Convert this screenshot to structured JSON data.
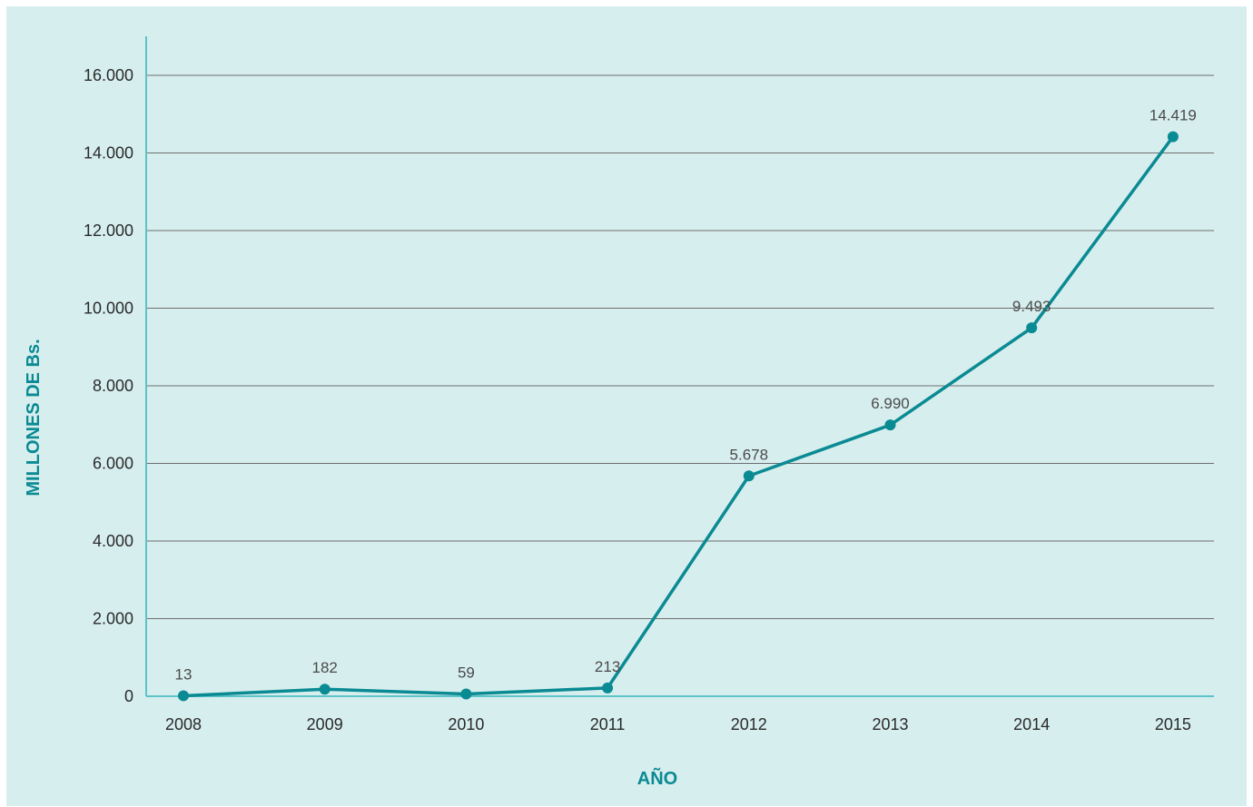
{
  "chart_data": {
    "type": "line",
    "title": "",
    "xlabel": "AÑO",
    "ylabel": "MILLONES DE Bs.",
    "categories": [
      "2008",
      "2009",
      "2010",
      "2011",
      "2012",
      "2013",
      "2014",
      "2015"
    ],
    "series": [
      {
        "values": [
          13,
          182,
          59,
          213,
          5678,
          6990,
          9493,
          14419
        ],
        "labels": [
          "13",
          "182",
          "59",
          "213",
          "5.678",
          "6.990",
          "9.493",
          "14.419"
        ]
      }
    ],
    "ylim": [
      0,
      16000
    ],
    "yticks": [
      0,
      2000,
      4000,
      6000,
      8000,
      10000,
      12000,
      14000,
      16000
    ],
    "ytick_labels": [
      "0",
      "2.000",
      "4.000",
      "6.000",
      "8.000",
      "10.000",
      "12.000",
      "14.000",
      "16.000"
    ],
    "grid": true,
    "legend": "none",
    "colors": {
      "line": "#0a8a93",
      "axis": "#5cc3c8",
      "axis_title": "#0a8a93",
      "background": "#d7eeee",
      "grid": "#6f6f6f"
    }
  }
}
